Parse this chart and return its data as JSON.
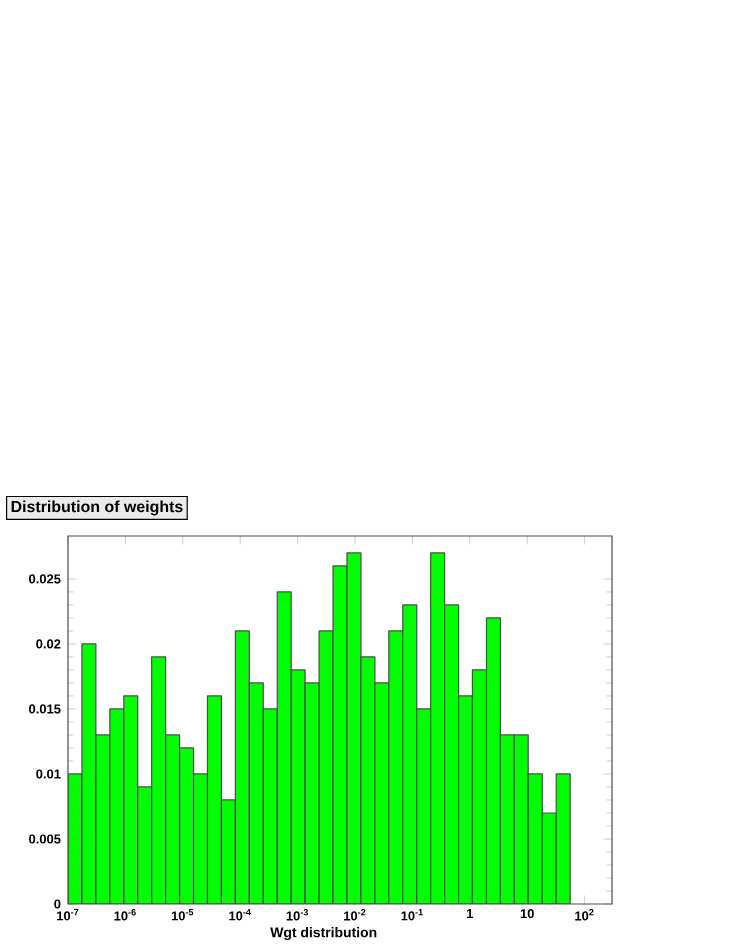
{
  "chart_data": {
    "type": "histogram",
    "title": "Distribution of weights",
    "xlabel": "Wgt distribution",
    "log": "x",
    "color": "#00ff00",
    "bins": [
      1e-07,
      1.75e-07,
      3.06e-07,
      5.36e-07,
      9.38e-07,
      1.64e-06,
      2.87e-06,
      5.02e-06,
      8.79e-06,
      1.54e-05,
      2.69e-05,
      4.71e-05,
      8.24e-05,
      0.000144,
      0.000252,
      0.000442,
      0.000773,
      0.00135,
      0.00237,
      0.00414,
      0.00724,
      0.0127,
      0.0222,
      0.0388,
      0.0679,
      0.119,
      0.208,
      0.364,
      0.637,
      1.11,
      1.95,
      3.41,
      5.97,
      10.4,
      18.3,
      32.0,
      56.0
    ],
    "values": [
      0.01,
      0.02,
      0.013,
      0.015,
      0.016,
      0.009,
      0.019,
      0.013,
      0.012,
      0.01,
      0.016,
      0.008,
      0.021,
      0.017,
      0.015,
      0.024,
      0.018,
      0.017,
      0.021,
      0.026,
      0.027,
      0.019,
      0.017,
      0.021,
      0.023,
      0.015,
      0.027,
      0.023,
      0.016,
      0.018,
      0.022,
      0.013,
      0.013,
      0.01,
      0.007,
      0.01
    ],
    "xlim": [
      1e-07,
      300
    ],
    "ylim": [
      0,
      0.0283
    ],
    "xticks": [
      {
        "value": 1e-07,
        "label": "10$^{-7}$"
      },
      {
        "value": 1e-06,
        "label": "10$^{-6}$"
      },
      {
        "value": 1e-05,
        "label": "10$^{-5}$"
      },
      {
        "value": 0.0001,
        "label": "10$^{-4}$"
      },
      {
        "value": 0.001,
        "label": "10$^{-3}$"
      },
      {
        "value": 0.01,
        "label": "10$^{-2}$"
      },
      {
        "value": 0.1,
        "label": "10$^{-1}$"
      },
      {
        "value": 1,
        "label": "1"
      },
      {
        "value": 10,
        "label": "10"
      },
      {
        "value": 100,
        "label": "10$^{2}$"
      }
    ],
    "yticks": [
      0,
      0.005,
      0.01,
      0.015,
      0.02,
      0.025
    ]
  }
}
